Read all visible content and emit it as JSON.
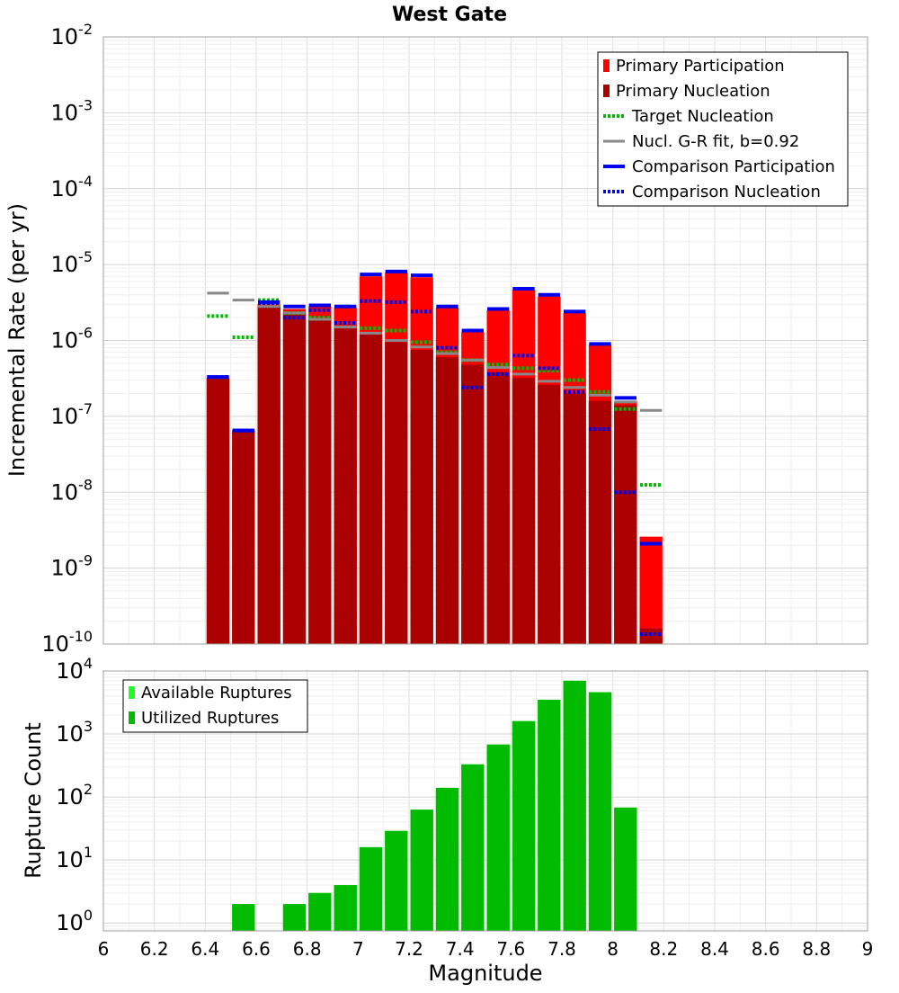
{
  "chart_data": [
    {
      "type": "bar",
      "title": "West Gate",
      "xlabel": "",
      "ylabel": "Incremental Rate (per yr)",
      "yscale": "log",
      "ylim": [
        1e-10,
        0.01
      ],
      "xlim": [
        6,
        9
      ],
      "bar_width": 0.1,
      "grid": true,
      "legend_position": "top-right",
      "y_tick_labels": [
        {
          "base": "10",
          "exp": "-10"
        },
        {
          "base": "10",
          "exp": "-9"
        },
        {
          "base": "10",
          "exp": "-8"
        },
        {
          "base": "10",
          "exp": "-7"
        },
        {
          "base": "10",
          "exp": "-6"
        },
        {
          "base": "10",
          "exp": "-5"
        },
        {
          "base": "10",
          "exp": "-4"
        },
        {
          "base": "10",
          "exp": "-3"
        },
        {
          "base": "10",
          "exp": "-2"
        }
      ],
      "legend": [
        "Primary Participation",
        "Primary Nucleation",
        "Target Nucleation",
        "Nucl. G-R fit, b=0.92",
        "Comparison Participation",
        "Comparison Nucleation"
      ],
      "series": [
        {
          "name": "Primary Participation",
          "style": "bar",
          "color": "#ff0000",
          "x": [
            6.45,
            6.55,
            6.65,
            6.75,
            6.85,
            6.95,
            7.05,
            7.15,
            7.25,
            7.35,
            7.45,
            7.55,
            7.65,
            7.75,
            7.85,
            7.95,
            8.05,
            8.15
          ],
          "values": [
            3.2e-07,
            6.5e-08,
            3e-06,
            2.6e-06,
            2.8e-06,
            2.7e-06,
            7e-06,
            7.8e-06,
            6.8e-06,
            2.7e-06,
            1.3e-06,
            2.5e-06,
            4.6e-06,
            3.8e-06,
            2.3e-06,
            8.8e-07,
            1.6e-07,
            2.6e-09
          ]
        },
        {
          "name": "Primary Nucleation",
          "style": "bar",
          "color": "#aa0000",
          "x": [
            6.45,
            6.55,
            6.65,
            6.75,
            6.85,
            6.95,
            7.05,
            7.15,
            7.25,
            7.35,
            7.45,
            7.55,
            7.65,
            7.75,
            7.85,
            7.95,
            8.05,
            8.15
          ],
          "values": [
            3.2e-07,
            6.5e-08,
            2.8e-06,
            2.3e-06,
            1.9e-06,
            1.5e-06,
            1.2e-06,
            9.5e-07,
            7.5e-07,
            6e-07,
            4.8e-07,
            3.8e-07,
            3.2e-07,
            2.6e-07,
            2e-07,
            1.6e-07,
            1.4e-07,
            1.6e-10
          ]
        },
        {
          "name": "Target Nucleation",
          "style": "dotted",
          "color": "#00bb00",
          "x": [
            6.45,
            6.55,
            6.65,
            6.75,
            6.85,
            6.95,
            7.05,
            7.15,
            7.25,
            7.35,
            7.45,
            7.55,
            7.65,
            7.75,
            7.85,
            7.95,
            8.05,
            8.15
          ],
          "values": [
            2.1e-06,
            1.1e-06,
            3.4e-06,
            2.3e-06,
            2e-06,
            1.7e-06,
            1.45e-06,
            1.35e-06,
            9.5e-07,
            7e-07,
            5.5e-07,
            4.8e-07,
            4.3e-07,
            4e-07,
            3e-07,
            2.1e-07,
            1.25e-07,
            1.25e-08
          ]
        },
        {
          "name": "Nucl. G-R fit, b=0.92",
          "style": "line-segment",
          "color": "#888888",
          "x": [
            6.45,
            6.55,
            6.65,
            6.75,
            6.85,
            6.95,
            7.05,
            7.15,
            7.25,
            7.35,
            7.45,
            7.55,
            7.65,
            7.75,
            7.85,
            7.95,
            8.05,
            8.15
          ],
          "values": [
            4.2e-06,
            3.4e-06,
            2.8e-06,
            2.3e-06,
            1.9e-06,
            1.5e-06,
            1.25e-06,
            1e-06,
            8.2e-07,
            6.7e-07,
            5.5e-07,
            4.4e-07,
            3.6e-07,
            2.9e-07,
            2.4e-07,
            1.9e-07,
            1.55e-07,
            1.2e-07
          ]
        },
        {
          "name": "Comparison Participation",
          "style": "solid",
          "color": "#0000ee",
          "x": [
            6.45,
            6.55,
            6.65,
            6.75,
            6.85,
            6.95,
            7.05,
            7.15,
            7.25,
            7.35,
            7.45,
            7.55,
            7.65,
            7.75,
            7.85,
            7.95,
            8.05,
            8.15
          ],
          "values": [
            3.3e-07,
            6.5e-08,
            3.2e-06,
            2.8e-06,
            2.9e-06,
            2.8e-06,
            7.4e-06,
            8.1e-06,
            7.2e-06,
            2.8e-06,
            1.35e-06,
            2.6e-06,
            4.8e-06,
            4e-06,
            2.4e-06,
            9e-07,
            1.75e-07,
            2.1e-09
          ]
        },
        {
          "name": "Comparison Nucleation",
          "style": "dotted",
          "color": "#0000ee",
          "x": [
            6.45,
            6.55,
            6.65,
            6.75,
            6.85,
            6.95,
            7.05,
            7.15,
            7.25,
            7.35,
            7.45,
            7.55,
            7.65,
            7.75,
            7.85,
            7.95,
            8.05,
            8.15
          ],
          "values": [
            3.3e-07,
            6.5e-08,
            3.1e-06,
            2e-06,
            2.5e-06,
            1.7e-06,
            3.3e-06,
            3.2e-06,
            2.4e-06,
            8e-07,
            2.4e-07,
            3.6e-07,
            6.3e-07,
            4.3e-07,
            2.1e-07,
            6.8e-08,
            1e-08,
            1.35e-10
          ]
        }
      ]
    },
    {
      "type": "bar",
      "title": "",
      "xlabel": "Magnitude",
      "ylabel": "Rupture Count",
      "yscale": "log",
      "ylim": [
        0.75,
        10000
      ],
      "xlim": [
        6,
        9
      ],
      "bar_width": 0.1,
      "grid": true,
      "legend_position": "top-left",
      "x_ticks": [
        "6",
        "6.2",
        "6.4",
        "6.6",
        "6.8",
        "7",
        "7.2",
        "7.4",
        "7.6",
        "7.8",
        "8",
        "8.2",
        "8.4",
        "8.6",
        "8.8",
        "9"
      ],
      "y_tick_labels": [
        {
          "base": "10",
          "exp": "0"
        },
        {
          "base": "10",
          "exp": "1"
        },
        {
          "base": "10",
          "exp": "2"
        },
        {
          "base": "10",
          "exp": "3"
        },
        {
          "base": "10",
          "exp": "4"
        }
      ],
      "legend": [
        "Available Ruptures",
        "Utilized Ruptures"
      ],
      "series": [
        {
          "name": "Available Ruptures",
          "style": "bar",
          "color": "#22ff22",
          "x": [
            6.55,
            6.75,
            6.85,
            6.95,
            7.05,
            7.15,
            7.25,
            7.35,
            7.45,
            7.55,
            7.65,
            7.75,
            7.85,
            7.95,
            8.05
          ],
          "values": [
            2,
            2,
            3,
            4,
            16,
            29,
            63,
            140,
            330,
            680,
            1600,
            3500,
            7000,
            4600,
            68
          ]
        },
        {
          "name": "Utilized Ruptures",
          "style": "bar",
          "color": "#00bb00",
          "x": [
            6.55,
            6.75,
            6.85,
            6.95,
            7.05,
            7.15,
            7.25,
            7.35,
            7.45,
            7.55,
            7.65,
            7.75,
            7.85,
            7.95,
            8.05
          ],
          "values": [
            2,
            2,
            3,
            4,
            16,
            29,
            63,
            140,
            330,
            680,
            1600,
            3500,
            7000,
            4600,
            68
          ]
        }
      ]
    }
  ]
}
